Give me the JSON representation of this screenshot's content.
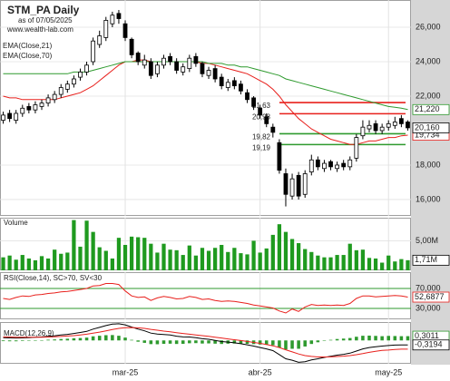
{
  "chart_data": [
    {
      "type": "candlestick",
      "title": "STM_PA Daily",
      "subtitle": "as of 07/05/2025",
      "source": "www.wealth-lab.com",
      "open": [
        20.6,
        21.0,
        20.6,
        21.0,
        21.4,
        21.2,
        21.4,
        21.6,
        21.8,
        22.1,
        22.4,
        22.7,
        23.1,
        23.4,
        24.0,
        25.0,
        25.4,
        26.2,
        26.8,
        26.2,
        25.3,
        24.5,
        23.8,
        24.0,
        23.3,
        23.8,
        24.3,
        24.0,
        23.4,
        23.6,
        24.3,
        23.9,
        23.2,
        23.6,
        23.1,
        22.5,
        22.9,
        22.7,
        22.2,
        21.9,
        21.3,
        20.8,
        20.2,
        19.3,
        17.5,
        16.2,
        17.4,
        16.3,
        17.6,
        18.3,
        17.8,
        18.2,
        17.8,
        18.1,
        17.9,
        18.4,
        19.7,
        20.1,
        20.4,
        20.0,
        20.2,
        20.3,
        20.7,
        20.5
      ],
      "high": [
        21.1,
        21.2,
        21.2,
        21.5,
        21.6,
        21.7,
        21.8,
        22.1,
        22.3,
        22.7,
        22.9,
        23.2,
        23.6,
        24.0,
        25.4,
        25.8,
        26.6,
        26.9,
        27.0,
        26.4,
        25.4,
        24.6,
        24.4,
        24.2,
        24.0,
        24.4,
        24.5,
        24.2,
        23.9,
        24.4,
        24.5,
        24.0,
        23.7,
        23.8,
        23.3,
        23.0,
        23.1,
        22.9,
        22.4,
        22.0,
        21.5,
        21.0,
        20.4,
        19.5,
        17.8,
        17.5,
        17.6,
        17.7,
        18.6,
        18.5,
        18.3,
        18.3,
        18.2,
        18.3,
        18.5,
        19.8,
        20.6,
        20.6,
        20.6,
        20.4,
        20.6,
        20.8,
        20.9,
        20.6
      ],
      "low": [
        20.4,
        20.5,
        20.4,
        20.8,
        21.0,
        21.0,
        21.2,
        21.4,
        21.6,
        21.9,
        22.2,
        22.5,
        22.9,
        23.2,
        23.8,
        24.8,
        25.2,
        26.0,
        26.2,
        25.2,
        24.2,
        23.8,
        23.6,
        23.0,
        23.1,
        23.6,
        23.8,
        23.3,
        23.2,
        23.4,
        23.7,
        23.1,
        23.0,
        22.8,
        22.4,
        22.3,
        22.4,
        22.1,
        21.6,
        21.2,
        20.7,
        20.2,
        19.6,
        17.5,
        15.6,
        16.0,
        16.0,
        16.1,
        17.4,
        17.7,
        17.6,
        17.7,
        17.6,
        17.7,
        17.7,
        18.2,
        19.5,
        19.9,
        19.8,
        19.8,
        20.0,
        20.1,
        20.2,
        20.0
      ],
      "close": [
        20.9,
        20.7,
        21.0,
        21.3,
        21.2,
        21.5,
        21.6,
        21.9,
        22.1,
        22.5,
        22.7,
        23.0,
        23.4,
        23.8,
        25.2,
        25.5,
        26.4,
        26.7,
        26.5,
        25.4,
        24.4,
        24.0,
        24.1,
        23.2,
        23.8,
        24.2,
        24.0,
        23.5,
        23.7,
        24.2,
        23.9,
        23.3,
        23.5,
        23.0,
        22.6,
        22.8,
        22.6,
        22.3,
        21.8,
        21.4,
        20.9,
        20.4,
        19.9,
        17.7,
        16.3,
        17.2,
        16.2,
        17.5,
        18.3,
        17.9,
        18.1,
        17.9,
        18.0,
        17.9,
        18.3,
        19.6,
        20.2,
        20.3,
        20.0,
        20.2,
        20.4,
        20.5,
        20.4,
        20.16
      ],
      "last_label": "20,160",
      "series": [
        {
          "name": "EMA(Close,21)",
          "color": "#e8201c",
          "label": "19,734",
          "values": [
            22.0,
            21.9,
            21.9,
            21.8,
            21.8,
            21.8,
            21.8,
            21.8,
            21.8,
            21.9,
            22.0,
            22.1,
            22.2,
            22.4,
            22.6,
            22.9,
            23.2,
            23.5,
            23.8,
            24.0,
            24.0,
            24.1,
            24.1,
            24.0,
            24.0,
            24.0,
            24.0,
            24.0,
            24.0,
            24.0,
            24.0,
            23.9,
            23.9,
            23.8,
            23.7,
            23.6,
            23.5,
            23.4,
            23.3,
            23.1,
            22.9,
            22.7,
            22.4,
            22.0,
            21.5,
            21.1,
            20.7,
            20.4,
            20.1,
            19.9,
            19.7,
            19.5,
            19.4,
            19.3,
            19.2,
            19.2,
            19.3,
            19.4,
            19.4,
            19.5,
            19.6,
            19.6,
            19.7,
            19.734
          ]
        },
        {
          "name": "EMA(Close,70)",
          "color": "#2e9a2e",
          "label": "21,220",
          "values": [
            23.3,
            23.3,
            23.3,
            23.3,
            23.3,
            23.3,
            23.3,
            23.3,
            23.3,
            23.3,
            23.3,
            23.4,
            23.4,
            23.4,
            23.5,
            23.6,
            23.7,
            23.8,
            23.9,
            24.0,
            24.0,
            24.0,
            24.0,
            24.0,
            24.0,
            24.0,
            24.0,
            24.0,
            24.0,
            24.0,
            24.0,
            24.0,
            23.9,
            23.9,
            23.9,
            23.8,
            23.8,
            23.7,
            23.7,
            23.6,
            23.5,
            23.4,
            23.3,
            23.2,
            23.0,
            22.9,
            22.8,
            22.7,
            22.6,
            22.5,
            22.4,
            22.3,
            22.2,
            22.1,
            22.0,
            21.9,
            21.8,
            21.7,
            21.6,
            21.5,
            21.4,
            21.35,
            21.3,
            21.22
          ]
        }
      ],
      "levels": [
        {
          "value": 21.63,
          "label": "21,63",
          "color": "#e8201c"
        },
        {
          "value": 20.98,
          "label": "20,98",
          "color": "#e8201c"
        },
        {
          "value": 19.82,
          "label": "19,82",
          "color": "#2e9a2e"
        },
        {
          "value": 19.19,
          "label": "19,19",
          "color": "#2e9a2e"
        }
      ],
      "ylim": [
        15.05,
        27.58
      ],
      "yticks": [
        {
          "value": 16,
          "label": "16,000"
        },
        {
          "value": 18,
          "label": "18,000"
        },
        {
          "value": 22,
          "label": "22,000"
        },
        {
          "value": 24,
          "label": "24,000"
        },
        {
          "value": 26,
          "label": "26,000"
        }
      ],
      "grid": true
    },
    {
      "type": "bar",
      "title": "Volume",
      "color": "#1f9a1f",
      "last_label": "1,71M",
      "values": [
        2.2,
        2.5,
        1.8,
        2.6,
        2.0,
        1.7,
        2.4,
        2.0,
        3.5,
        2.8,
        3.0,
        8.5,
        4.0,
        8.4,
        6.5,
        3.9,
        3.3,
        2.0,
        5.5,
        4.3,
        5.7,
        5.6,
        5.5,
        4.5,
        3.0,
        4.5,
        3.5,
        3.4,
        2.6,
        4.2,
        2.5,
        3.8,
        3.3,
        3.8,
        4.3,
        3.1,
        3.8,
        2.9,
        2.7,
        5.0,
        3.0,
        3.7,
        6.0,
        7.8,
        6.5,
        5.3,
        4.6,
        3.6,
        3.1,
        2.5,
        2.2,
        2.2,
        2.6,
        2.6,
        4.5,
        3.4,
        3.5,
        2.1,
        2.0,
        1.3,
        2.5,
        1.5,
        1.9,
        1.71
      ],
      "ylim": [
        0,
        8.9
      ],
      "yticks": [
        {
          "value": 5,
          "label": "5,00M"
        }
      ]
    },
    {
      "type": "line",
      "title": "RSI(Close,14), SC>70, SV<30",
      "band_color": "#2e9a2e",
      "series": [
        {
          "color": "#e8201c",
          "label": "52,6877",
          "values": [
            50,
            48,
            52,
            55,
            54,
            57,
            58,
            60,
            61,
            63,
            64,
            66,
            68,
            70,
            75,
            76,
            80,
            80,
            78,
            65,
            55,
            52,
            53,
            46,
            51,
            54,
            52,
            49,
            50,
            54,
            52,
            48,
            49,
            46,
            44,
            45,
            44,
            42,
            40,
            37,
            35,
            33,
            31,
            25,
            21,
            29,
            24,
            33,
            38,
            36,
            37,
            36,
            37,
            36,
            40,
            50,
            55,
            55,
            53,
            54,
            55,
            56,
            55,
            52.6877
          ]
        }
      ],
      "ylim": [
        8.2,
        102.7
      ],
      "yticks": [
        {
          "value": 70,
          "label": "70,000"
        },
        {
          "value": 30,
          "label": "30,000"
        }
      ]
    },
    {
      "type": "line",
      "title": "MACD(12,26,9)",
      "series": [
        {
          "color": "#2e9a2e",
          "kind": "bar",
          "label": "0,3011",
          "values": [
            -0.05,
            -0.06,
            -0.06,
            -0.04,
            -0.03,
            0.0,
            0.02,
            0.05,
            0.07,
            0.1,
            0.12,
            0.15,
            0.17,
            0.2,
            0.29,
            0.33,
            0.37,
            0.38,
            0.33,
            0.2,
            0.04,
            -0.09,
            -0.17,
            -0.26,
            -0.27,
            -0.24,
            -0.23,
            -0.25,
            -0.24,
            -0.2,
            -0.19,
            -0.22,
            -0.21,
            -0.23,
            -0.25,
            -0.23,
            -0.22,
            -0.22,
            -0.24,
            -0.26,
            -0.29,
            -0.31,
            -0.34,
            -0.5,
            -0.64,
            -0.59,
            -0.59,
            -0.43,
            -0.25,
            -0.13,
            -0.03,
            0.04,
            0.1,
            0.13,
            0.17,
            0.26,
            0.33,
            0.34,
            0.32,
            0.3,
            0.32,
            0.31,
            0.3,
            0.3011
          ]
        },
        {
          "color": "#000000",
          "label": "-0,3194",
          "values": [
            0.2,
            0.18,
            0.17,
            0.18,
            0.19,
            0.22,
            0.25,
            0.29,
            0.33,
            0.38,
            0.43,
            0.49,
            0.56,
            0.64,
            0.8,
            0.92,
            1.05,
            1.15,
            1.18,
            1.1,
            0.95,
            0.8,
            0.68,
            0.52,
            0.45,
            0.42,
            0.38,
            0.3,
            0.25,
            0.24,
            0.2,
            0.12,
            0.08,
            0.0,
            -0.08,
            -0.12,
            -0.17,
            -0.23,
            -0.31,
            -0.4,
            -0.5,
            -0.6,
            -0.72,
            -1.0,
            -1.3,
            -1.4,
            -1.55,
            -1.5,
            -1.38,
            -1.3,
            -1.2,
            -1.12,
            -1.04,
            -0.98,
            -0.9,
            -0.75,
            -0.6,
            -0.5,
            -0.45,
            -0.4,
            -0.36,
            -0.33,
            -0.32,
            -0.3194
          ]
        },
        {
          "color": "#e8201c",
          "values": [
            0.25,
            0.24,
            0.23,
            0.22,
            0.22,
            0.22,
            0.23,
            0.24,
            0.26,
            0.28,
            0.31,
            0.34,
            0.39,
            0.44,
            0.51,
            0.59,
            0.68,
            0.77,
            0.85,
            0.9,
            0.91,
            0.89,
            0.85,
            0.78,
            0.72,
            0.66,
            0.61,
            0.55,
            0.49,
            0.44,
            0.39,
            0.34,
            0.29,
            0.23,
            0.17,
            0.11,
            0.05,
            -0.01,
            -0.07,
            -0.14,
            -0.21,
            -0.29,
            -0.38,
            -0.5,
            -0.66,
            -0.81,
            -0.96,
            -1.07,
            -1.13,
            -1.17,
            -1.17,
            -1.16,
            -1.14,
            -1.11,
            -1.07,
            -1.01,
            -0.93,
            -0.84,
            -0.77,
            -0.7,
            -0.68,
            -0.64,
            -0.62,
            -0.6205
          ]
        }
      ],
      "ylim": [
        -1.65,
        1.3
      ],
      "xticks": [
        {
          "value": 19,
          "label": "mar-25"
        },
        {
          "value": 40,
          "label": "abr-25"
        },
        {
          "value": 60,
          "label": "may-25"
        }
      ]
    }
  ]
}
